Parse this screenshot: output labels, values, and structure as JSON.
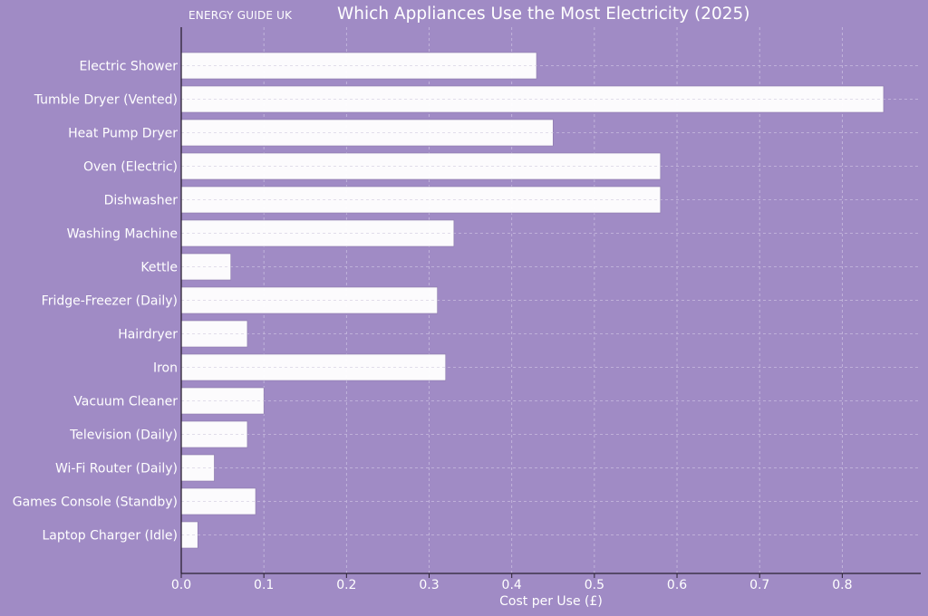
{
  "header": {
    "brand": "ENERGY GUIDE UK"
  },
  "colors": {
    "background": "#a08bc5",
    "bar_fill": "#ffffff",
    "bar_stroke": "#8a78aa",
    "axis": "#2b2233",
    "grid": "#c9bde0"
  },
  "chart_data": {
    "type": "bar",
    "orientation": "horizontal",
    "title": "Which Appliances Use the Most Electricity (2025)",
    "xlabel": "Cost per Use (£)",
    "ylabel": "",
    "categories": [
      "Electric Shower",
      "Tumble Dryer (Vented)",
      "Heat Pump Dryer",
      "Oven (Electric)",
      "Dishwasher",
      "Washing Machine",
      "Kettle",
      "Fridge-Freezer (Daily)",
      "Hairdryer",
      "Iron",
      "Vacuum Cleaner",
      "Television (Daily)",
      "Wi-Fi Router (Daily)",
      "Games Console (Standby)",
      "Laptop Charger (Idle)"
    ],
    "values": [
      0.43,
      0.85,
      0.45,
      0.58,
      0.58,
      0.33,
      0.06,
      0.31,
      0.08,
      0.32,
      0.1,
      0.08,
      0.04,
      0.09,
      0.02
    ],
    "xlim": [
      0,
      0.895
    ],
    "xticks": [
      "0.0",
      "0.1",
      "0.2",
      "0.3",
      "0.4",
      "0.5",
      "0.6",
      "0.7",
      "0.8"
    ],
    "grid": true,
    "legend": "none"
  }
}
